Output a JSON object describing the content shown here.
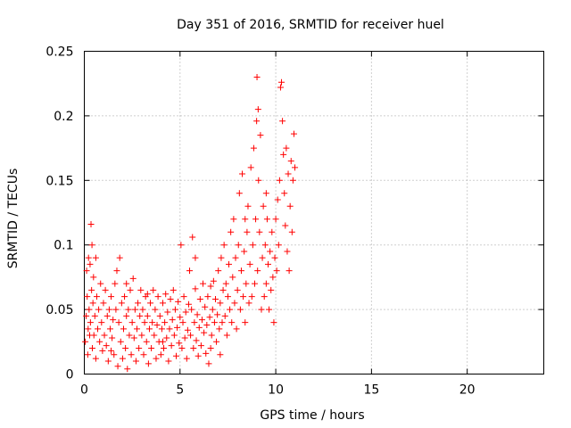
{
  "chart_data": {
    "type": "scatter",
    "title": "Day 351 of 2016, SRMTID for receiver huel",
    "xlabel": "GPS time / hours",
    "ylabel": "SRMTID / TECUs",
    "xlim": [
      0,
      24
    ],
    "ylim": [
      0,
      0.25
    ],
    "xticks": [
      0,
      5,
      10,
      15,
      20
    ],
    "xtick_labels": [
      "0",
      "5",
      "10",
      "15",
      "20"
    ],
    "yticks": [
      0,
      0.05,
      0.1,
      0.15,
      0.2,
      0.25
    ],
    "ytick_labels": [
      "0",
      "0.05",
      "0.1",
      "0.15",
      "0.2",
      "0.25"
    ],
    "grid": true,
    "marker": "+",
    "color": "#ff0000",
    "series": [
      {
        "name": "SRMTID",
        "points": [
          [
            0.05,
            0.025
          ],
          [
            0.1,
            0.045
          ],
          [
            0.12,
            0.08
          ],
          [
            0.15,
            0.06
          ],
          [
            0.18,
            0.015
          ],
          [
            0.2,
            0.035
          ],
          [
            0.22,
            0.09
          ],
          [
            0.25,
            0.05
          ],
          [
            0.28,
            0.03
          ],
          [
            0.3,
            0.085
          ],
          [
            0.32,
            0.04
          ],
          [
            0.35,
            0.116
          ],
          [
            0.38,
            0.065
          ],
          [
            0.4,
            0.1
          ],
          [
            0.42,
            0.02
          ],
          [
            0.45,
            0.055
          ],
          [
            0.48,
            0.075
          ],
          [
            0.5,
            0.03
          ],
          [
            0.55,
            0.045
          ],
          [
            0.6,
            0.012
          ],
          [
            0.65,
            0.06
          ],
          [
            0.7,
            0.035
          ],
          [
            0.75,
            0.05
          ],
          [
            0.8,
            0.025
          ],
          [
            0.85,
            0.07
          ],
          [
            0.9,
            0.04
          ],
          [
            0.95,
            0.018
          ],
          [
            1.0,
            0.055
          ],
          [
            1.05,
            0.03
          ],
          [
            1.1,
            0.065
          ],
          [
            1.15,
            0.022
          ],
          [
            1.2,
            0.045
          ],
          [
            1.25,
            0.01
          ],
          [
            1.3,
            0.05
          ],
          [
            1.35,
            0.035
          ],
          [
            1.4,
            0.06
          ],
          [
            1.45,
            0.028
          ],
          [
            1.5,
            0.042
          ],
          [
            1.55,
            0.015
          ],
          [
            1.6,
            0.07
          ],
          [
            1.65,
            0.05
          ],
          [
            1.7,
            0.08
          ],
          [
            1.75,
            0.006
          ],
          [
            1.8,
            0.04
          ],
          [
            1.85,
            0.09
          ],
          [
            1.9,
            0.025
          ],
          [
            1.95,
            0.055
          ],
          [
            2.0,
            0.012
          ],
          [
            2.05,
            0.035
          ],
          [
            2.1,
            0.06
          ],
          [
            2.15,
            0.02
          ],
          [
            2.2,
            0.045
          ],
          [
            2.25,
            0.004
          ],
          [
            2.3,
            0.05
          ],
          [
            2.35,
            0.03
          ],
          [
            2.4,
            0.065
          ],
          [
            2.45,
            0.015
          ],
          [
            2.5,
            0.04
          ],
          [
            2.55,
            0.074
          ],
          [
            2.6,
            0.028
          ],
          [
            2.65,
            0.05
          ],
          [
            2.7,
            0.01
          ],
          [
            2.75,
            0.035
          ],
          [
            2.8,
            0.055
          ],
          [
            2.85,
            0.02
          ],
          [
            2.9,
            0.045
          ],
          [
            2.95,
            0.065
          ],
          [
            3.0,
            0.03
          ],
          [
            3.05,
            0.05
          ],
          [
            3.1,
            0.015
          ],
          [
            3.15,
            0.04
          ],
          [
            3.2,
            0.06
          ],
          [
            3.25,
            0.025
          ],
          [
            3.3,
            0.045
          ],
          [
            3.35,
            0.008
          ],
          [
            3.4,
            0.035
          ],
          [
            3.45,
            0.055
          ],
          [
            3.5,
            0.02
          ],
          [
            3.55,
            0.04
          ],
          [
            3.6,
            0.065
          ],
          [
            3.65,
            0.03
          ],
          [
            3.7,
            0.05
          ],
          [
            3.75,
            0.012
          ],
          [
            3.8,
            0.038
          ],
          [
            3.85,
            0.06
          ],
          [
            3.9,
            0.025
          ],
          [
            3.95,
            0.045
          ],
          [
            4.0,
            0.015
          ],
          [
            4.05,
            0.035
          ],
          [
            4.1,
            0.055
          ],
          [
            4.15,
            0.02
          ],
          [
            4.2,
            0.04
          ],
          [
            4.25,
            0.062
          ],
          [
            4.3,
            0.028
          ],
          [
            4.35,
            0.048
          ],
          [
            4.4,
            0.01
          ],
          [
            4.45,
            0.035
          ],
          [
            4.5,
            0.058
          ],
          [
            4.55,
            0.022
          ],
          [
            4.6,
            0.042
          ],
          [
            4.65,
            0.065
          ],
          [
            4.7,
            0.03
          ],
          [
            4.75,
            0.05
          ],
          [
            4.8,
            0.014
          ],
          [
            4.85,
            0.036
          ],
          [
            4.9,
            0.056
          ],
          [
            4.95,
            0.024
          ],
          [
            5.0,
            0.044
          ],
          [
            5.05,
            0.1
          ],
          [
            5.1,
            0.02
          ],
          [
            5.15,
            0.04
          ],
          [
            5.2,
            0.06
          ],
          [
            5.25,
            0.028
          ],
          [
            5.3,
            0.048
          ],
          [
            5.35,
            0.012
          ],
          [
            5.4,
            0.034
          ],
          [
            5.45,
            0.054
          ],
          [
            5.5,
            0.08
          ],
          [
            5.55,
            0.03
          ],
          [
            5.6,
            0.05
          ],
          [
            5.65,
            0.106
          ],
          [
            5.7,
            0.02
          ],
          [
            5.75,
            0.04
          ],
          [
            5.8,
            0.066
          ],
          [
            5.85,
            0.026
          ],
          [
            5.9,
            0.046
          ],
          [
            5.95,
            0.014
          ],
          [
            6.0,
            0.036
          ],
          [
            6.05,
            0.058
          ],
          [
            6.1,
            0.022
          ],
          [
            6.15,
            0.042
          ],
          [
            6.2,
            0.07
          ],
          [
            6.25,
            0.032
          ],
          [
            6.3,
            0.052
          ],
          [
            6.35,
            0.016
          ],
          [
            6.4,
            0.038
          ],
          [
            6.45,
            0.06
          ],
          [
            6.5,
            0.008
          ],
          [
            6.55,
            0.044
          ],
          [
            6.6,
            0.068
          ],
          [
            6.65,
            0.03
          ],
          [
            6.7,
            0.05
          ],
          [
            6.75,
            0.072
          ],
          [
            6.8,
            0.04
          ],
          [
            6.85,
            0.058
          ],
          [
            6.9,
            0.025
          ],
          [
            6.95,
            0.046
          ],
          [
            7.0,
            0.08
          ],
          [
            7.05,
            0.035
          ],
          [
            7.1,
            0.055
          ],
          [
            7.15,
            0.09
          ],
          [
            7.2,
            0.04
          ],
          [
            7.25,
            0.065
          ],
          [
            7.3,
            0.1
          ],
          [
            7.35,
            0.045
          ],
          [
            7.4,
            0.07
          ],
          [
            7.45,
            0.03
          ],
          [
            7.5,
            0.06
          ],
          [
            7.55,
            0.085
          ],
          [
            7.6,
            0.05
          ],
          [
            7.65,
            0.11
          ],
          [
            7.7,
            0.04
          ],
          [
            7.75,
            0.075
          ],
          [
            7.8,
            0.12
          ],
          [
            7.85,
            0.055
          ],
          [
            7.9,
            0.09
          ],
          [
            7.95,
            0.035
          ],
          [
            8.0,
            0.065
          ],
          [
            8.05,
            0.1
          ],
          [
            8.1,
            0.14
          ],
          [
            8.15,
            0.05
          ],
          [
            8.2,
            0.08
          ],
          [
            8.25,
            0.155
          ],
          [
            8.3,
            0.06
          ],
          [
            8.35,
            0.095
          ],
          [
            8.4,
            0.04
          ],
          [
            8.45,
            0.07
          ],
          [
            8.5,
            0.11
          ],
          [
            8.55,
            0.13
          ],
          [
            8.6,
            0.055
          ],
          [
            8.65,
            0.085
          ],
          [
            8.7,
            0.16
          ],
          [
            8.75,
            0.06
          ],
          [
            8.8,
            0.1
          ],
          [
            8.85,
            0.175
          ],
          [
            8.9,
            0.07
          ],
          [
            8.95,
            0.12
          ],
          [
            9.0,
            0.196
          ],
          [
            9.02,
            0.23
          ],
          [
            9.05,
            0.08
          ],
          [
            9.08,
            0.205
          ],
          [
            9.1,
            0.15
          ],
          [
            9.15,
            0.11
          ],
          [
            9.2,
            0.185
          ],
          [
            9.25,
            0.05
          ],
          [
            9.3,
            0.09
          ],
          [
            9.35,
            0.13
          ],
          [
            9.4,
            0.06
          ],
          [
            9.45,
            0.1
          ],
          [
            9.5,
            0.07
          ],
          [
            9.55,
            0.12
          ],
          [
            9.6,
            0.085
          ],
          [
            9.65,
            0.05
          ],
          [
            9.7,
            0.095
          ],
          [
            9.75,
            0.065
          ],
          [
            9.8,
            0.11
          ],
          [
            9.85,
            0.075
          ],
          [
            9.9,
            0.04
          ],
          [
            9.95,
            0.09
          ],
          [
            10.0,
            0.12
          ],
          [
            10.05,
            0.08
          ],
          [
            10.1,
            0.135
          ],
          [
            10.15,
            0.1
          ],
          [
            10.2,
            0.15
          ],
          [
            10.25,
            0.222
          ],
          [
            10.3,
            0.226
          ],
          [
            10.35,
            0.196
          ],
          [
            10.4,
            0.17
          ],
          [
            10.45,
            0.14
          ],
          [
            10.5,
            0.115
          ],
          [
            10.55,
            0.175
          ],
          [
            10.6,
            0.095
          ],
          [
            10.65,
            0.155
          ],
          [
            10.7,
            0.08
          ],
          [
            10.75,
            0.13
          ],
          [
            10.8,
            0.165
          ],
          [
            10.85,
            0.11
          ],
          [
            10.9,
            0.15
          ],
          [
            10.95,
            0.186
          ],
          [
            11.0,
            0.16
          ],
          [
            0.6,
            0.09
          ],
          [
            1.4,
            0.018
          ],
          [
            2.2,
            0.07
          ],
          [
            3.3,
            0.062
          ],
          [
            4.1,
            0.025
          ],
          [
            5.8,
            0.09
          ],
          [
            6.6,
            0.02
          ],
          [
            7.1,
            0.015
          ],
          [
            8.4,
            0.12
          ],
          [
            9.5,
            0.14
          ]
        ]
      }
    ]
  }
}
